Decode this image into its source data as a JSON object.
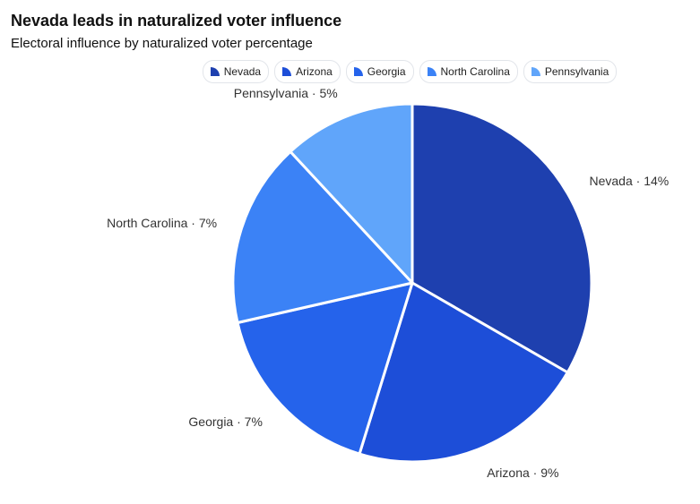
{
  "title": "Nevada leads in naturalized voter influence",
  "subtitle": "Electoral influence by naturalized voter percentage",
  "chart_data": {
    "type": "pie",
    "title": "Nevada leads in naturalized voter influence",
    "subtitle": "Electoral influence by naturalized voter percentage",
    "legend_position": "top-center",
    "label_separator": " · ",
    "unit": "%",
    "slices": [
      {
        "label": "Nevada",
        "value": 14,
        "color": "#1e40af"
      },
      {
        "label": "Arizona",
        "value": 9,
        "color": "#1d4ed8"
      },
      {
        "label": "Georgia",
        "value": 7,
        "color": "#2563eb"
      },
      {
        "label": "North Carolina",
        "value": 7,
        "color": "#3b82f6"
      },
      {
        "label": "Pennsylvania",
        "value": 5,
        "color": "#60a5fa"
      }
    ]
  }
}
